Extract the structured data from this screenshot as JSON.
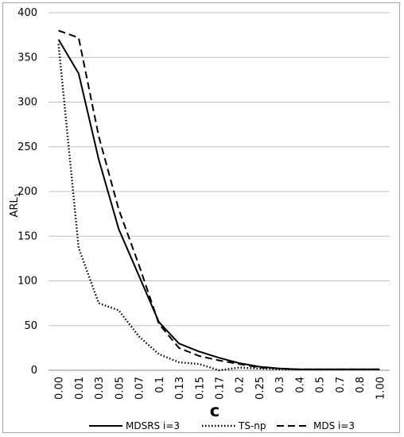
{
  "chart_data": {
    "type": "line",
    "xlabel": "c",
    "ylabel": "ARL",
    "ylabel_subscript": "1",
    "ylim": [
      0,
      400
    ],
    "yticks": [
      0,
      50,
      100,
      150,
      200,
      250,
      300,
      350,
      400
    ],
    "categories": [
      "0.00",
      "0.01",
      "0.03",
      "0.05",
      "0.07",
      "0.1",
      "0.13",
      "0.15",
      "0.17",
      "0.2",
      "0.25",
      "0.3",
      "0.4",
      "0.5",
      "0.7",
      "0.8",
      "1.00"
    ],
    "grid": "horizontal",
    "legend_position": "bottom",
    "series": [
      {
        "name": "MDSRS i=3",
        "dash": "solid",
        "color": "#000000",
        "values": [
          370,
          332,
          236,
          158,
          106,
          54,
          30,
          21,
          14,
          8,
          4,
          2,
          1,
          1,
          1,
          1,
          1
        ]
      },
      {
        "name": "TS-np",
        "dash": "dotted",
        "color": "#000000",
        "values": [
          365,
          137,
          75,
          67,
          38,
          18,
          9,
          7,
          0,
          3,
          2,
          1,
          1,
          1,
          1,
          1,
          1
        ]
      },
      {
        "name": "MDS i=3",
        "dash": "dashed",
        "color": "#000000",
        "values": [
          380,
          372,
          262,
          180,
          118,
          52,
          25,
          16,
          11,
          7,
          3,
          2,
          1,
          1,
          1,
          1,
          1
        ]
      }
    ]
  }
}
